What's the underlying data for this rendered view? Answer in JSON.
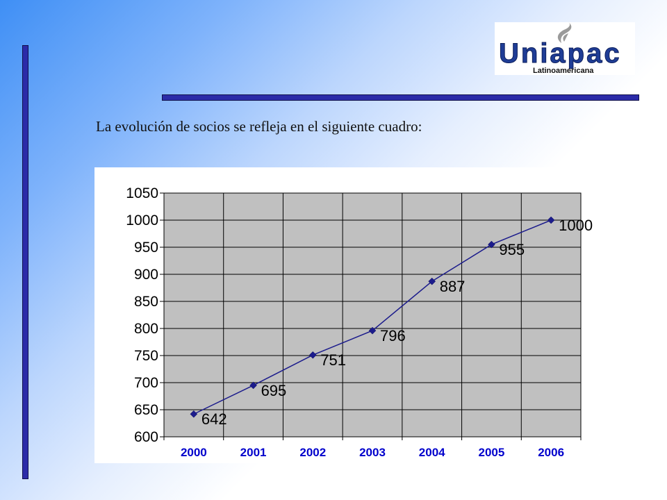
{
  "logo": {
    "name": "Uniapac",
    "tagline": "Latinoamericana"
  },
  "subtitle": "La evolución de socios se refleja en el siguiente cuadro:",
  "colors": {
    "accent_bar": "#2b2ba8",
    "series_line": "#1c1c8c",
    "plot_background": "#c0c0c0",
    "x_tick_color": "#0000cc"
  },
  "chart_data": {
    "type": "line",
    "title": "",
    "xlabel": "",
    "ylabel": "",
    "categories": [
      "2000",
      "2001",
      "2002",
      "2003",
      "2004",
      "2005",
      "2006"
    ],
    "series": [
      {
        "values": [
          642,
          695,
          751,
          796,
          887,
          955,
          1000
        ],
        "data_labels": [
          "642",
          "695",
          "751",
          "796",
          "887",
          "955",
          "1000"
        ]
      }
    ],
    "ylim": [
      600,
      1050
    ],
    "yticks": [
      "600",
      "650",
      "700",
      "750",
      "800",
      "850",
      "900",
      "950",
      "1000",
      "1050"
    ],
    "grid": true,
    "legend": "none",
    "marker": "diamond"
  }
}
